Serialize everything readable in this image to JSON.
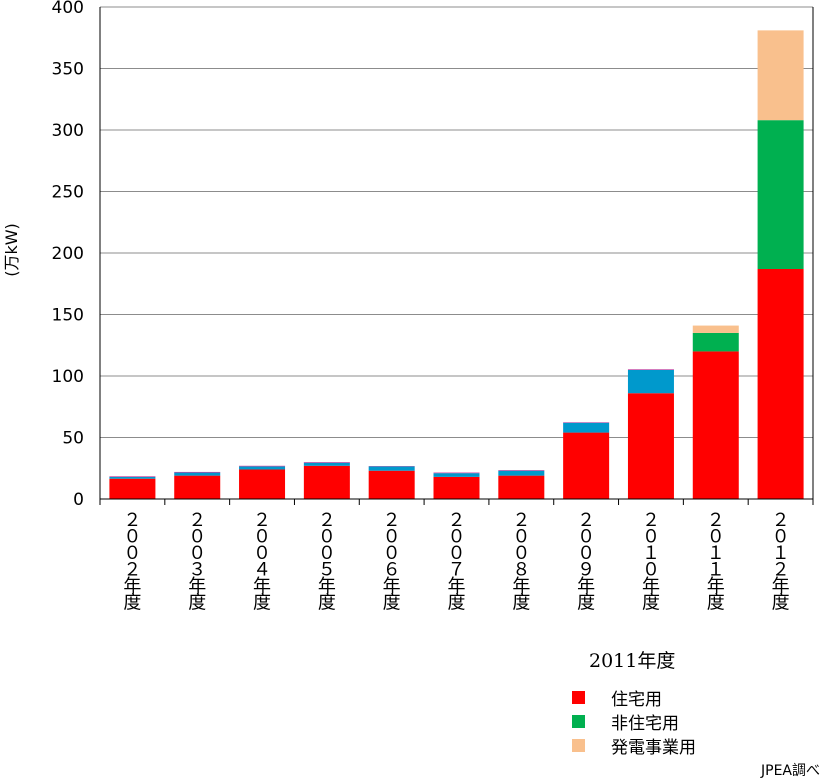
{
  "chart_data": {
    "type": "stacked-bar",
    "title": "",
    "ylabel": "(万kW)",
    "xlabel": "",
    "ylim": [
      0,
      400
    ],
    "yticks": [
      "0",
      "50",
      "100",
      "150",
      "200",
      "250",
      "300",
      "350",
      "400"
    ],
    "grid": true,
    "legend_position": "bottom-right",
    "categories": [
      "２００２年度",
      "２００３年度",
      "２００４年度",
      "２００５年度",
      "２００６年度",
      "２００７年度",
      "２００８年度",
      "２００９年度",
      "２０１０年度",
      "２０１１年度",
      "２０１２年度"
    ],
    "series": [
      {
        "key": "residential",
        "color": "#ff0000",
        "values": [
          16.5,
          19,
          24,
          27,
          23,
          18,
          19,
          54,
          86,
          120,
          187
        ]
      },
      {
        "key": "pre2011_nonres",
        "color": "#0099cc",
        "values": [
          1.5,
          2.5,
          2.5,
          2.5,
          3.5,
          3,
          4,
          8,
          19,
          0,
          0
        ]
      },
      {
        "key": "pre2011_top",
        "color": "#cc3399",
        "values": [
          0.5,
          0.5,
          0.5,
          0.5,
          0.3,
          0.5,
          0.5,
          0.4,
          0.5,
          0,
          0
        ]
      },
      {
        "name": "非住宅用",
        "key": "nonresidential",
        "color": "#00b050",
        "values": [
          0,
          0,
          0,
          0,
          0,
          0,
          0,
          0,
          0,
          15,
          121
        ]
      },
      {
        "name": "発電事業用",
        "key": "utility",
        "color": "#f9c08d",
        "values": [
          0,
          0,
          0,
          0,
          0,
          0,
          0,
          0,
          0,
          6,
          73
        ]
      }
    ]
  },
  "legend": {
    "title": "2011年度",
    "items": [
      {
        "label": "住宅用",
        "color": "#ff0000"
      },
      {
        "label": "非住宅用",
        "color": "#00b050"
      },
      {
        "label": "発電事業用",
        "color": "#f9c08d"
      }
    ]
  },
  "source": "JPEA調べ"
}
